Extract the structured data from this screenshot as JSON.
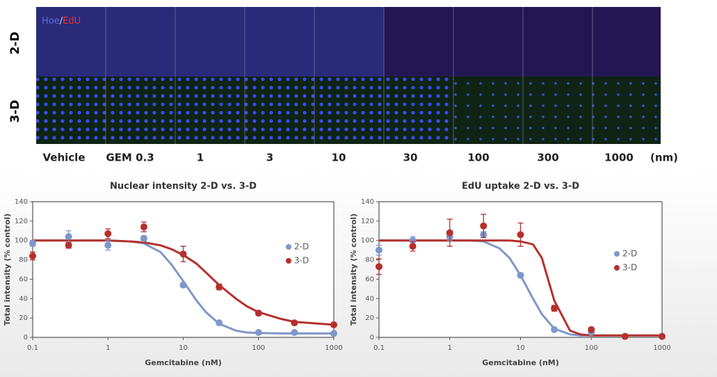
{
  "image": {
    "stain": {
      "hoe": "Hoe",
      "sep": "/",
      "edu": "EdU"
    },
    "row_labels": [
      "2-D",
      "3-D"
    ],
    "column_labels": [
      "Vehicle",
      "GEM 0.3",
      "1",
      "3",
      "10",
      "30",
      "100",
      "300",
      "1000"
    ],
    "unit": "(nm)"
  },
  "chart_data": [
    {
      "type": "scatter",
      "title": "Nuclear intensity 2-D vs. 3-D",
      "x_label": "Gemcitabine (nM)",
      "y_label": "Total intensity (% control)",
      "xscale": "log",
      "xlim": [
        0.1,
        1000
      ],
      "xticks": [
        0.1,
        1,
        10,
        100,
        1000
      ],
      "ylim": [
        0,
        140
      ],
      "yticks": [
        0,
        20,
        40,
        60,
        80,
        100,
        120,
        140
      ],
      "legend": "right",
      "x": [
        0.1,
        0.3,
        1,
        3,
        10,
        30,
        100,
        300,
        1000
      ],
      "series": [
        {
          "name": "2-D",
          "color": "#7f97c9",
          "values": [
            97,
            104,
            95,
            102,
            54,
            15,
            5,
            5,
            4
          ],
          "errors": [
            3,
            6,
            5,
            3,
            2,
            1,
            1,
            1,
            1
          ],
          "fit": {
            "x": [
              0.1,
              0.3,
              1,
              2,
              3,
              5,
              7,
              10,
              15,
              20,
              30,
              50,
              70,
              100,
              200,
              300,
              1000
            ],
            "values": [
              100,
              100,
              100,
              99,
              97,
              88,
              75,
              58,
              38,
              26,
              14,
              7,
              5,
              4.5,
              4,
              4,
              4
            ]
          }
        },
        {
          "name": "3-D",
          "color": "#b5302c",
          "values": [
            84,
            95,
            107,
            114,
            86,
            52,
            25,
            15,
            13
          ],
          "errors": [
            4,
            3,
            5,
            5,
            8,
            3,
            2,
            2,
            2
          ],
          "fit": {
            "x": [
              0.1,
              0.3,
              1,
              2,
              3,
              5,
              7,
              10,
              15,
              20,
              30,
              50,
              70,
              100,
              200,
              300,
              1000
            ],
            "values": [
              100,
              100,
              100,
              99,
              98,
              95,
              91,
              85,
              76,
              67,
              54,
              40,
              32,
              26,
              19,
              16,
              13
            ]
          }
        }
      ]
    },
    {
      "type": "scatter",
      "title": "EdU uptake 2-D vs. 3-D",
      "x_label": "Gemcitabine (nM)",
      "y_label": "Total intensity (% control)",
      "xscale": "log",
      "xlim": [
        0.1,
        1000
      ],
      "xticks": [
        0.1,
        1,
        10,
        100,
        1000
      ],
      "ylim": [
        0,
        140
      ],
      "yticks": [
        0,
        20,
        40,
        60,
        80,
        100,
        120,
        140
      ],
      "legend": "right",
      "x": [
        0.1,
        0.3,
        1,
        3,
        10,
        30,
        100,
        300,
        1000
      ],
      "series": [
        {
          "name": "2-D",
          "color": "#7f97c9",
          "values": [
            90,
            100,
            104,
            106,
            64,
            8,
            5,
            1,
            1
          ],
          "errors": [
            5,
            4,
            4,
            3,
            2,
            1,
            1,
            1,
            1
          ],
          "fit": {
            "x": [
              0.1,
              0.3,
              1,
              2,
              3,
              5,
              7,
              10,
              15,
              20,
              30,
              50,
              70,
              100,
              200,
              300,
              1000
            ],
            "values": [
              100,
              100,
              100,
              100,
              99,
              92,
              82,
              64,
              40,
              24,
              9,
              3,
              2,
              2,
              2,
              2,
              2
            ]
          }
        },
        {
          "name": "3-D",
          "color": "#b5302c",
          "values": [
            73,
            94,
            108,
            115,
            106,
            30,
            8,
            1,
            1
          ],
          "errors": [
            8,
            5,
            14,
            12,
            12,
            3,
            2,
            1,
            1
          ],
          "fit": {
            "x": [
              0.1,
              0.3,
              1,
              2,
              3,
              5,
              7,
              10,
              15,
              20,
              30,
              50,
              70,
              100,
              200,
              300,
              1000
            ],
            "values": [
              100,
              100,
              100,
              100,
              100,
              100,
              100,
              99,
              96,
              82,
              38,
              7,
              3,
              2,
              2,
              2,
              2
            ]
          }
        }
      ]
    }
  ]
}
